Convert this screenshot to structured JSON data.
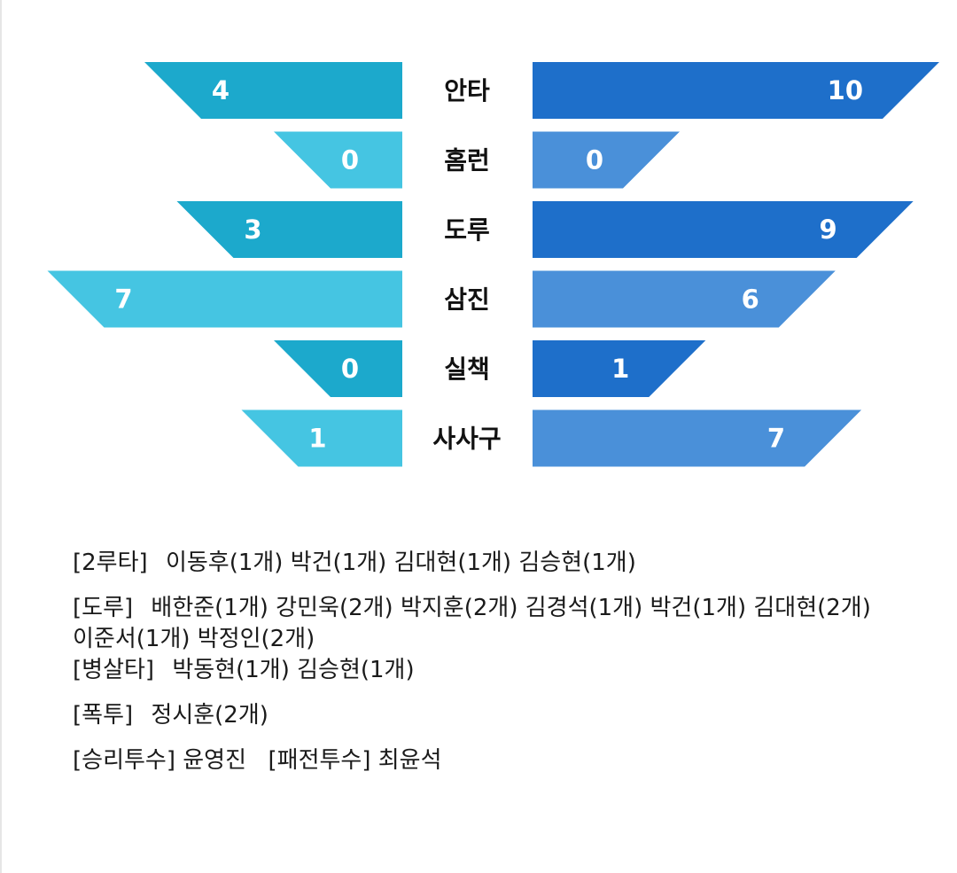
{
  "chart_data": {
    "type": "bar",
    "categories": [
      "안타",
      "홈런",
      "도루",
      "삼진",
      "실책",
      "사사구"
    ],
    "series": [
      {
        "values": [
          4,
          0,
          3,
          7,
          0,
          1
        ]
      },
      {
        "values": [
          10,
          0,
          9,
          6,
          1,
          7
        ]
      }
    ],
    "colors": {
      "left_dark": "#1ca9cc",
      "left_light": "#45c5e2",
      "right_dark": "#1e6fca",
      "right_light": "#4a90d9"
    }
  },
  "notes": {
    "doubles": {
      "tag": "[2루타]",
      "text": "이동후(1개) 박건(1개) 김대현(1개) 김승현(1개)"
    },
    "steals": {
      "tag": "[도루]",
      "text": "배한준(1개) 강민욱(2개) 박지훈(2개) 김경석(1개) 박건(1개) 김대현(2개) 이준서(1개) 박정인(2개)"
    },
    "double_plays": {
      "tag": "[병살타]",
      "text": "박동현(1개) 김승현(1개)"
    },
    "wild_pitches": {
      "tag": "[폭투]",
      "text": "정시훈(2개)"
    },
    "pitchers": {
      "win_tag": "[승리투수]",
      "win_name": "윤영진",
      "loss_tag": "[패전투수]",
      "loss_name": "최윤석"
    }
  }
}
